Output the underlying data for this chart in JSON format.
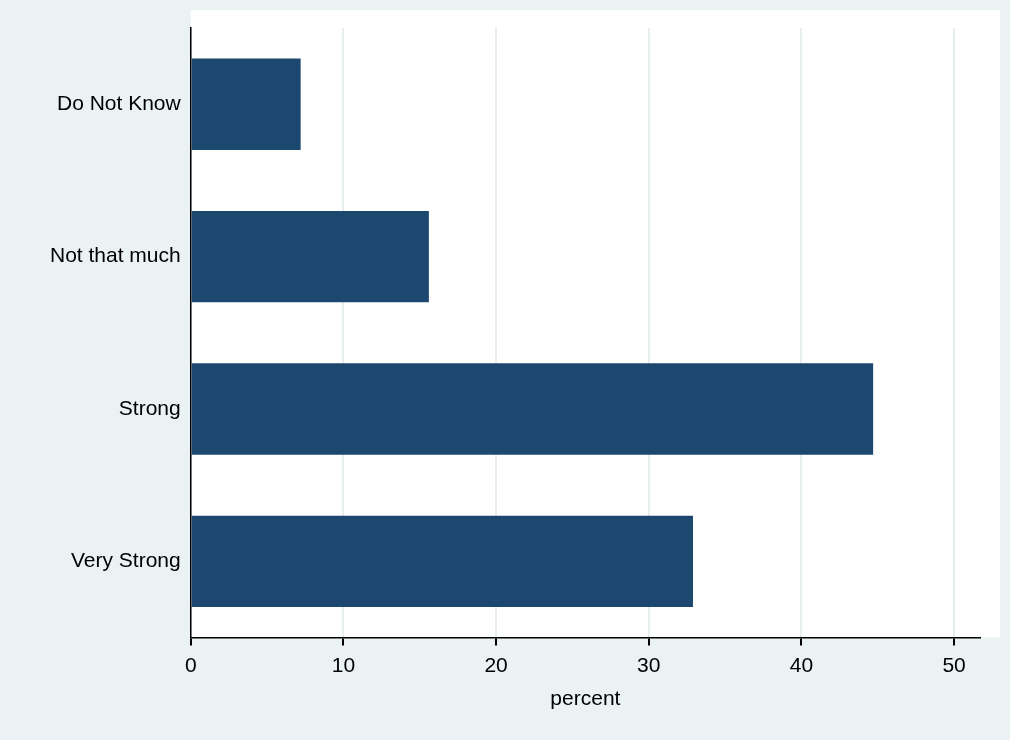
{
  "chart_data": {
    "type": "bar",
    "orientation": "horizontal",
    "categories": [
      "Do Not Know",
      "Not that much",
      "Strong",
      "Very Strong"
    ],
    "values": [
      7.2,
      15.6,
      44.7,
      32.9
    ],
    "color": "#1c4870",
    "xlabel": "percent",
    "xlim": [
      0,
      51.7
    ],
    "xticks": [
      0,
      10,
      20,
      30,
      40,
      50
    ],
    "grid": "x",
    "legend": false
  }
}
